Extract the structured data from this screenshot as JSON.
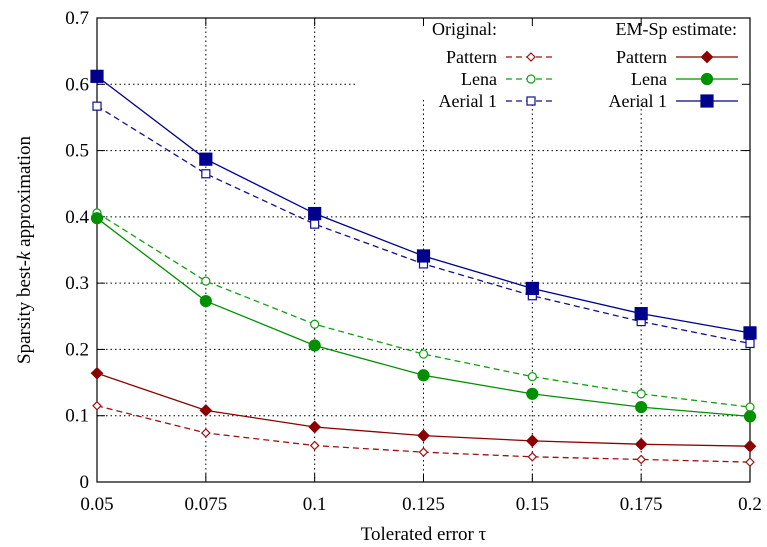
{
  "chart_data": {
    "type": "line",
    "xlabel": "Tolerated error τ",
    "ylabel_parts": [
      "Sparsity best-",
      "k",
      " approximation"
    ],
    "x": [
      0.05,
      0.075,
      0.1,
      0.125,
      0.15,
      0.175,
      0.2
    ],
    "x_tick_labels": [
      "0.05",
      "0.075",
      "0.1",
      "0.125",
      "0.15",
      "0.175",
      "0.2"
    ],
    "xlim": [
      0.05,
      0.2
    ],
    "ylim": [
      0,
      0.7
    ],
    "y_ticks": [
      0,
      0.1,
      0.2,
      0.3,
      0.4,
      0.5,
      0.6,
      0.7
    ],
    "y_tick_labels": [
      "0",
      "0.1",
      "0.2",
      "0.3",
      "0.4",
      "0.5",
      "0.6",
      "0.7"
    ],
    "grid": true,
    "legend_position": "top-right",
    "legend_groups": [
      "Original:",
      "EM-Sp estimate:"
    ],
    "series": [
      {
        "name": "Pattern",
        "group": "Original:",
        "color": "#a01010",
        "dash": "dashed",
        "marker": "diamond-open",
        "values": [
          0.115,
          0.074,
          0.055,
          0.045,
          0.038,
          0.034,
          0.03
        ]
      },
      {
        "name": "Lena",
        "group": "Original:",
        "color": "#10a010",
        "dash": "dashed",
        "marker": "circle-open",
        "values": [
          0.406,
          0.303,
          0.238,
          0.193,
          0.159,
          0.133,
          0.113
        ]
      },
      {
        "name": "Aerial 1",
        "group": "Original:",
        "color": "#10108c",
        "dash": "dashed",
        "marker": "square-open",
        "values": [
          0.567,
          0.465,
          0.389,
          0.329,
          0.281,
          0.242,
          0.209
        ]
      },
      {
        "name": "Pattern",
        "group": "EM-Sp estimate:",
        "color": "#8c0000",
        "dash": "solid",
        "marker": "diamond-filled",
        "values": [
          0.164,
          0.108,
          0.083,
          0.07,
          0.062,
          0.057,
          0.054
        ]
      },
      {
        "name": "Lena",
        "group": "EM-Sp estimate:",
        "color": "#009000",
        "dash": "solid",
        "marker": "circle-filled",
        "values": [
          0.398,
          0.273,
          0.206,
          0.161,
          0.133,
          0.113,
          0.099
        ]
      },
      {
        "name": "Aerial 1",
        "group": "EM-Sp estimate:",
        "color": "#00008c",
        "dash": "solid",
        "marker": "square-filled",
        "values": [
          0.612,
          0.487,
          0.405,
          0.341,
          0.292,
          0.254,
          0.225
        ]
      }
    ]
  }
}
